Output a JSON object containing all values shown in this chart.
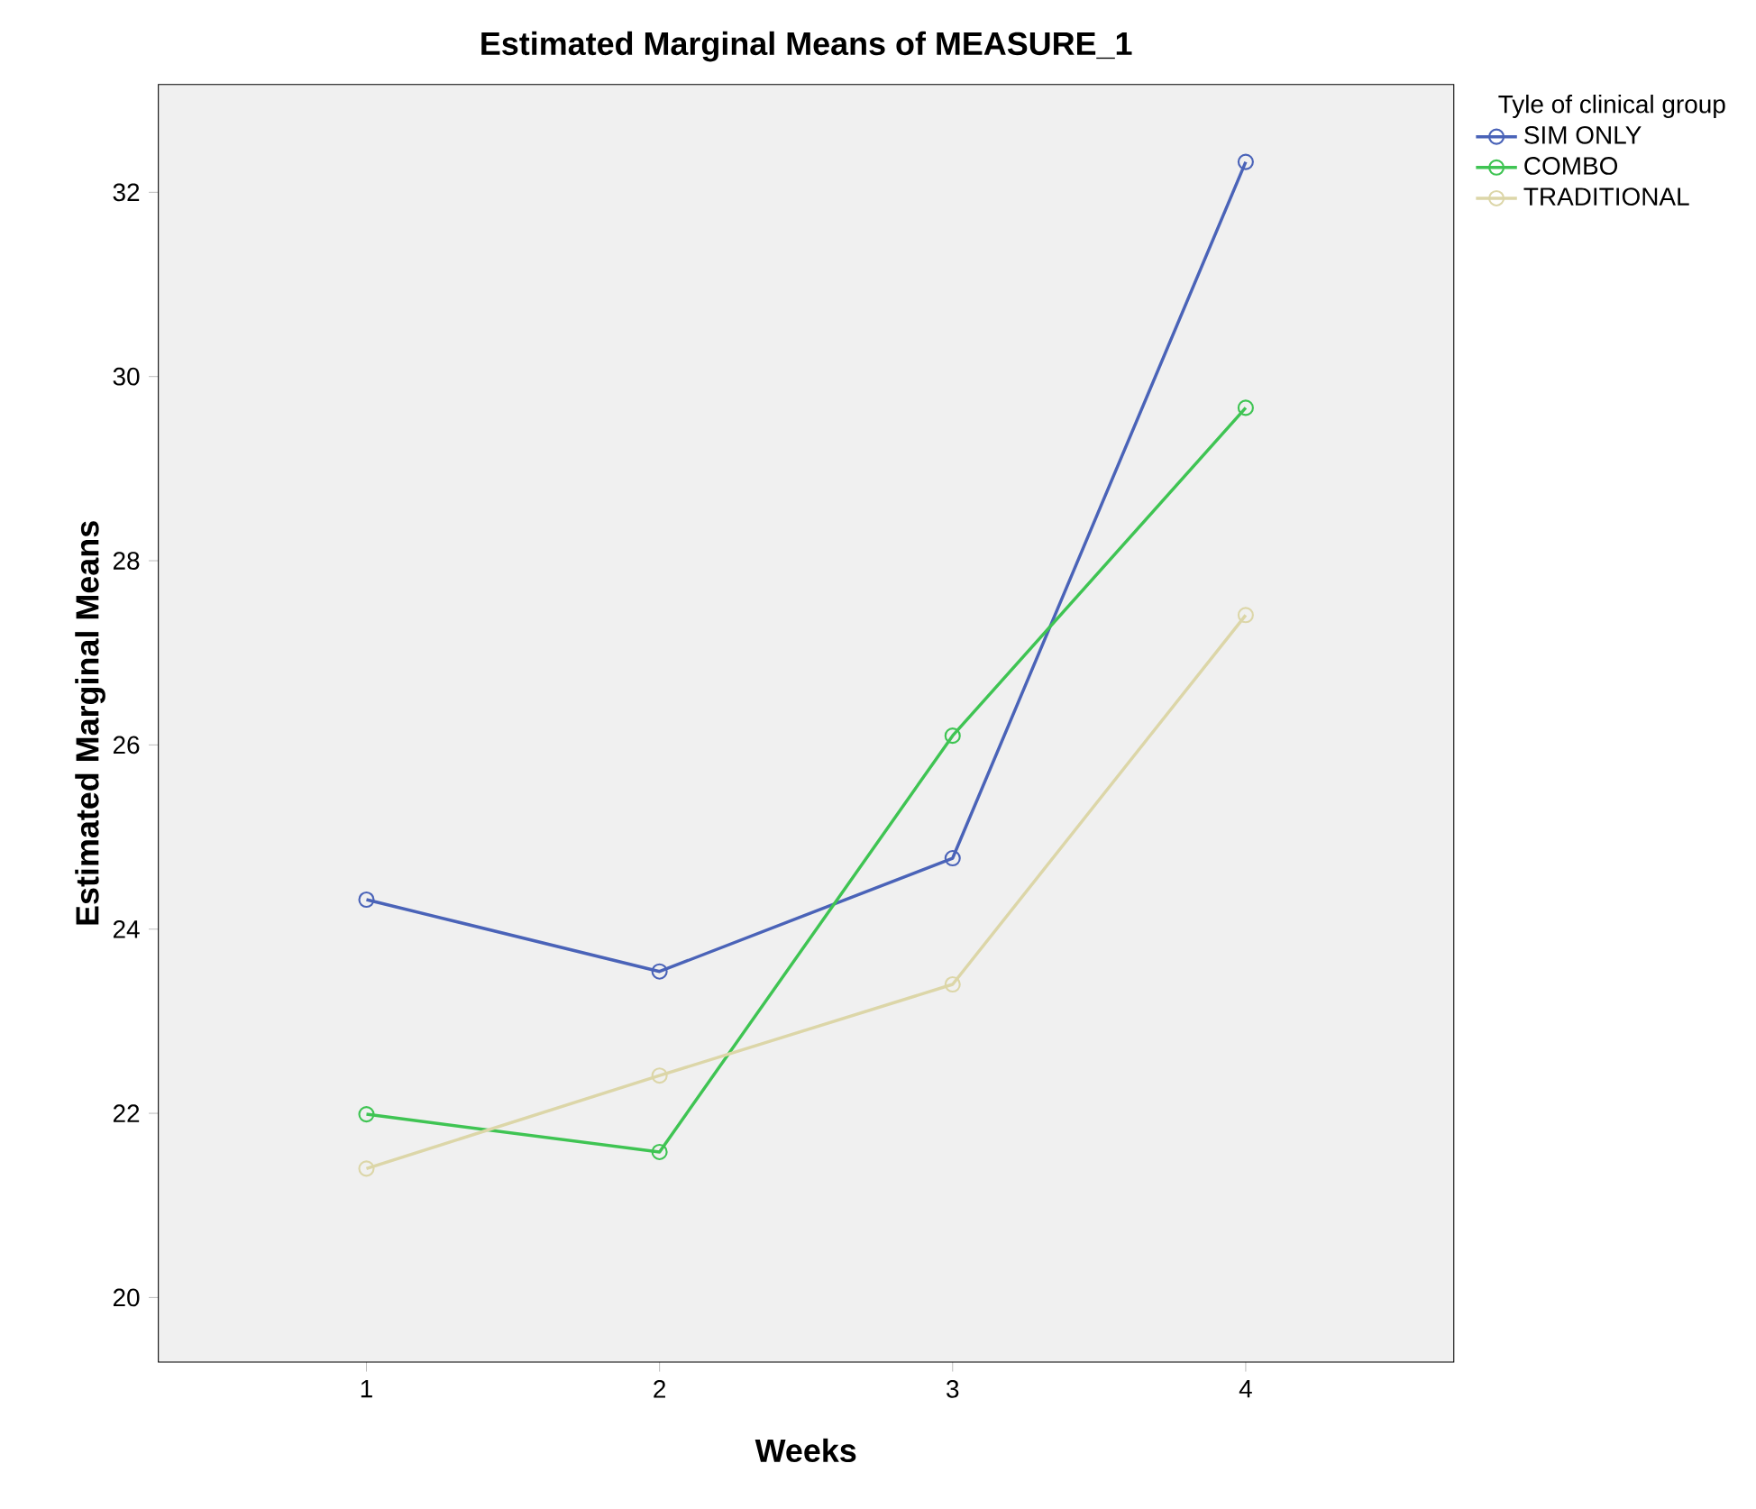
{
  "chart_data": {
    "type": "line",
    "title": "Estimated Marginal Means of MEASURE_1",
    "xlabel": "Weeks",
    "ylabel": "Estimated Marginal Means",
    "legend_title": "Tyle of clinical group",
    "x": [
      1,
      2,
      3,
      4
    ],
    "xlim": [
      0.29,
      4.71
    ],
    "xticks": [
      1,
      2,
      3,
      4
    ],
    "ylim": [
      19.3,
      33.17
    ],
    "yticks": [
      20,
      22,
      24,
      26,
      28,
      30,
      32
    ],
    "series": [
      {
        "name": "SIM ONLY",
        "color": "#4a63b8",
        "values": [
          24.32,
          23.54,
          24.77,
          32.33
        ]
      },
      {
        "name": "COMBO",
        "color": "#3fc453",
        "values": [
          21.99,
          21.58,
          26.1,
          29.66
        ]
      },
      {
        "name": "TRADITIONAL",
        "color": "#dcd6a8",
        "values": [
          21.4,
          22.41,
          23.4,
          27.41
        ]
      }
    ],
    "marker": "circle",
    "line_style": "solid",
    "legend": "top right",
    "grid": false
  }
}
